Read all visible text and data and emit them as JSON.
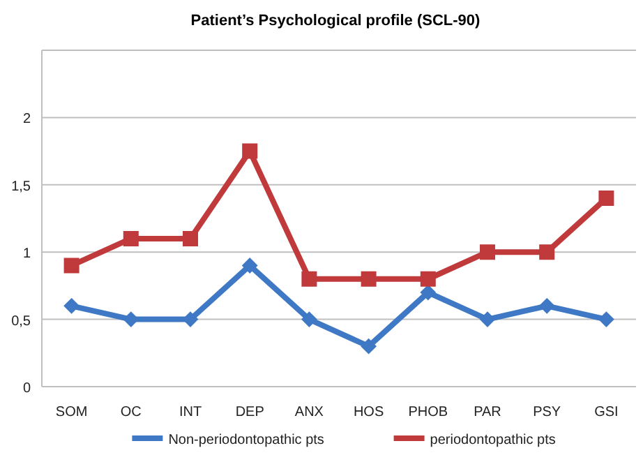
{
  "chart_data": {
    "type": "line",
    "title": "Patient’s Psychological profile (SCL-90)",
    "categories": [
      "SOM",
      "OC",
      "INT",
      "DEP",
      "ANX",
      "HOS",
      "PHOB",
      "PAR",
      "PSY",
      "GSI"
    ],
    "series": [
      {
        "name": "Non-periodontopathic pts",
        "color": "#3f78c4",
        "marker": "diamond",
        "values": [
          0.6,
          0.5,
          0.5,
          0.9,
          0.5,
          0.3,
          0.7,
          0.5,
          0.6,
          0.5
        ]
      },
      {
        "name": "periodontopathic pts",
        "color": "#c0393b",
        "marker": "square",
        "values": [
          0.9,
          1.1,
          1.1,
          1.75,
          0.8,
          0.8,
          0.8,
          1.0,
          1.0,
          1.4
        ]
      }
    ],
    "ylim": [
      0,
      2.5
    ],
    "yticks": [
      0,
      {
        "value": 0.5,
        "label": "0,5"
      },
      1,
      {
        "value": 1.5,
        "label": "1,5"
      },
      2,
      {
        "value": 2.5,
        "label": null
      }
    ],
    "grid": "y",
    "legend": "bottom"
  }
}
